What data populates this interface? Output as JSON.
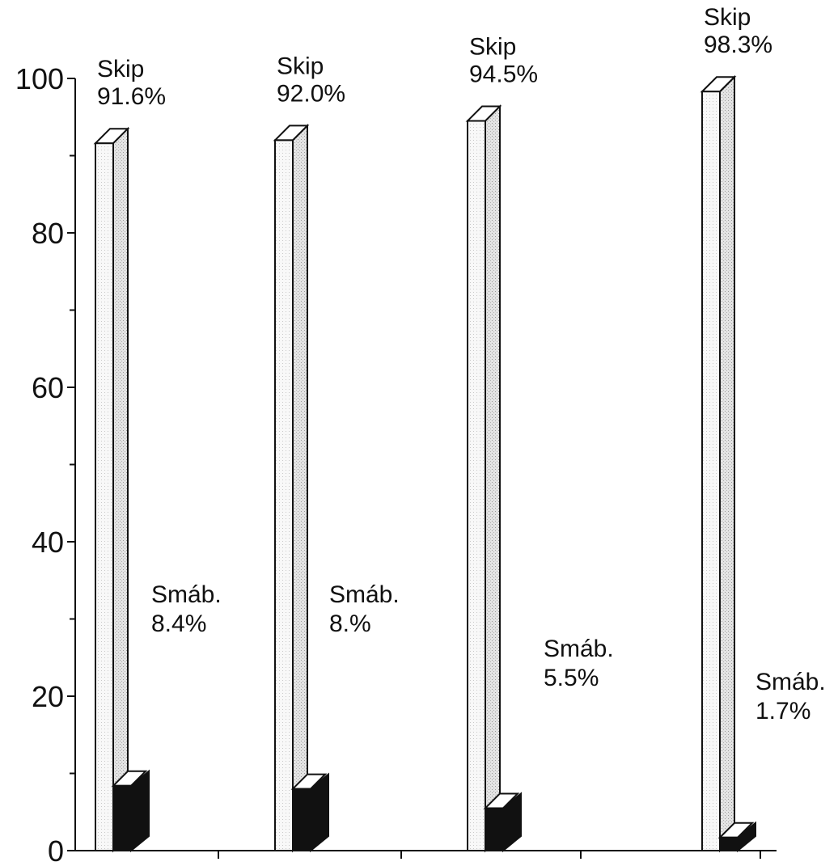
{
  "chart_data": {
    "type": "bar",
    "title": "",
    "xlabel": "",
    "ylabel": "",
    "ylim": [
      0,
      100
    ],
    "yticks": [
      0,
      20,
      40,
      60,
      80,
      100
    ],
    "minor_tick_step": 10,
    "categories": [
      "",
      "",
      "",
      ""
    ],
    "series": [
      {
        "name": "Skip",
        "values": [
          91.6,
          92.0,
          94.5,
          98.3
        ],
        "labels": [
          "91.6%",
          "92.0%",
          "94.5%",
          "98.3%"
        ]
      },
      {
        "name": "Smáb.",
        "values": [
          8.4,
          8.0,
          5.5,
          1.7
        ],
        "labels": [
          "8.4%",
          "8.%",
          "5.5%",
          "1.7%"
        ]
      }
    ],
    "colors": {
      "skip_front": "#f6f6f6",
      "skip_side": "#d2d2d2",
      "smab_front": "#111111",
      "smab_top": "#ffffff"
    },
    "grid": false,
    "style": "3d-bars"
  }
}
